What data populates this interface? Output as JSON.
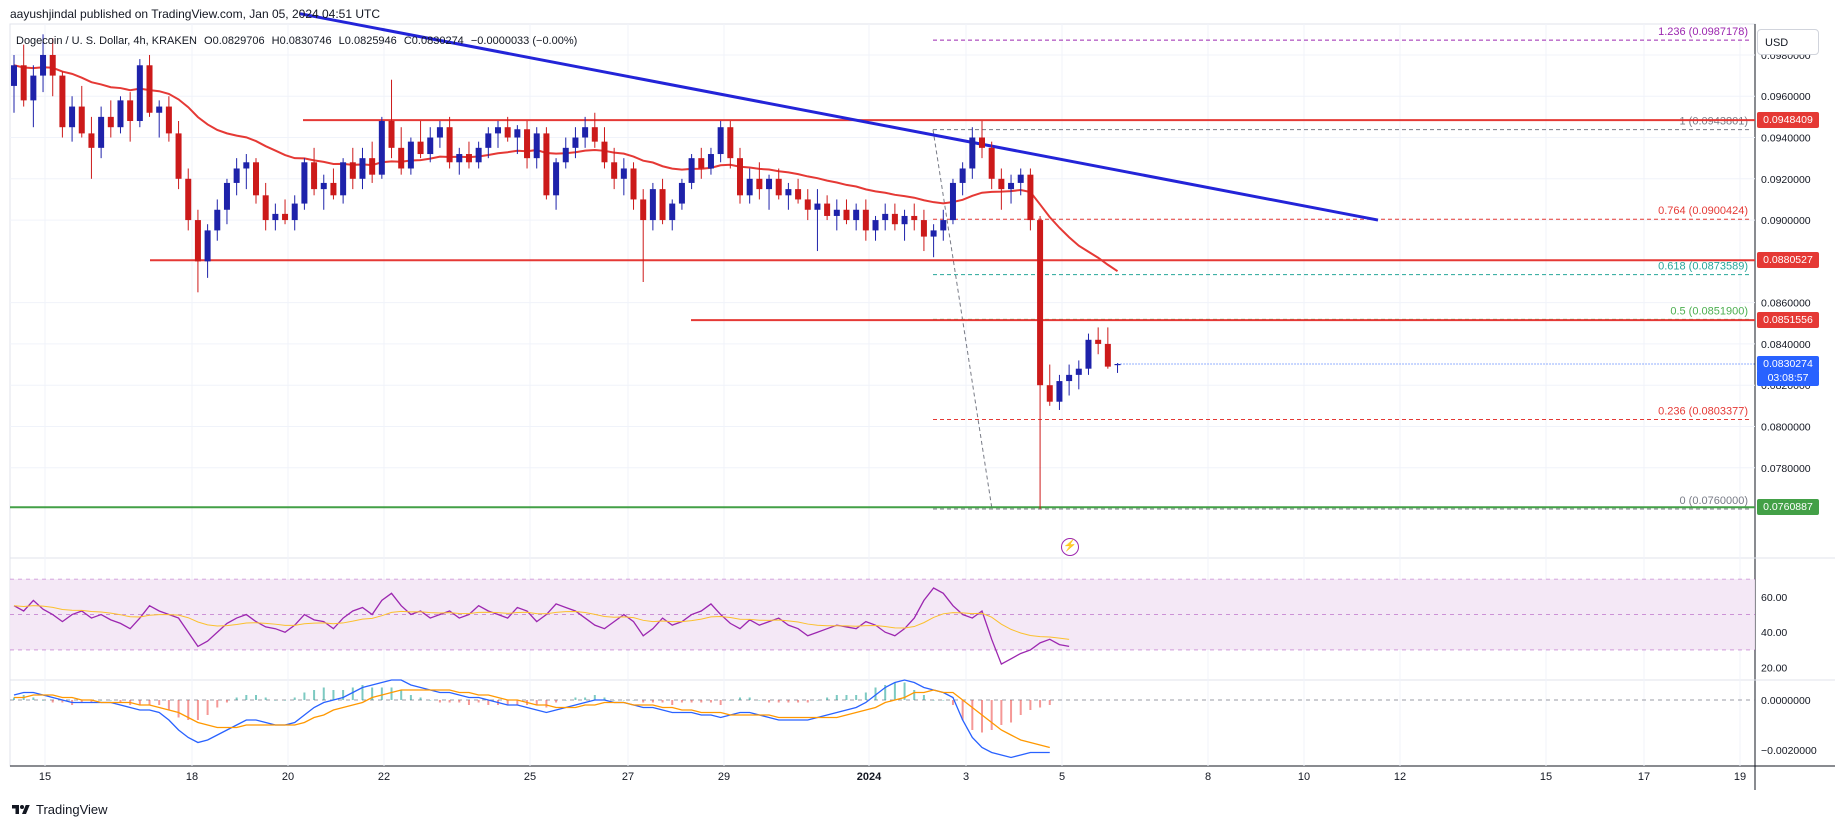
{
  "header": {
    "publisher": "aayushjindal published on TradingView.com, Jan 05, 2024 04:51 UTC",
    "symbol": "Dogecoin / U. S. Dollar, 4h, KRAKEN",
    "open": "O0.0829706",
    "high": "H0.0830746",
    "low": "L0.0825946",
    "close": "C0.0830274",
    "change": "−0.0000033 (−0.00%)",
    "currency": "USD"
  },
  "footer": {
    "brand": "TradingView"
  },
  "colors": {
    "up": "#1e22aa",
    "down": "#cc1a1a",
    "ema": "#e53935",
    "trendline": "#2324d8",
    "support": "#43a047",
    "fib": "#c2185b",
    "rsi": "#9c27b0",
    "macd": "#2962ff",
    "signal": "#ff9800"
  },
  "chart_data": [
    {
      "type": "candlestick",
      "pane": "price",
      "x_ticks": [
        "15",
        "18",
        "20",
        "22",
        "25",
        "27",
        "29",
        "2024",
        "3",
        "5",
        "8",
        "10",
        "12",
        "15",
        "17",
        "19"
      ],
      "y_ticks": [
        "0.0980000",
        "0.0960000",
        "0.0940000",
        "0.0920000",
        "0.0900000",
        "0.0860000",
        "0.0840000",
        "0.0820000",
        "0.0800000",
        "0.0780000"
      ],
      "ylim": [
        0.0745,
        0.0995
      ],
      "candles": [
        [
          0.0965,
          0.098,
          0.0952,
          0.0975
        ],
        [
          0.0975,
          0.0985,
          0.0955,
          0.0958
        ],
        [
          0.0958,
          0.0975,
          0.0945,
          0.097
        ],
        [
          0.097,
          0.099,
          0.0962,
          0.098
        ],
        [
          0.098,
          0.0988,
          0.096,
          0.097
        ],
        [
          0.097,
          0.0972,
          0.094,
          0.0945
        ],
        [
          0.0945,
          0.096,
          0.0938,
          0.0955
        ],
        [
          0.0955,
          0.0965,
          0.094,
          0.0942
        ],
        [
          0.0942,
          0.095,
          0.092,
          0.0935
        ],
        [
          0.0935,
          0.0955,
          0.093,
          0.095
        ],
        [
          0.095,
          0.0958,
          0.094,
          0.0945
        ],
        [
          0.0945,
          0.096,
          0.0942,
          0.0958
        ],
        [
          0.0958,
          0.0962,
          0.0938,
          0.0948
        ],
        [
          0.0948,
          0.0978,
          0.0945,
          0.0975
        ],
        [
          0.0975,
          0.098,
          0.095,
          0.0952
        ],
        [
          0.0952,
          0.0958,
          0.094,
          0.0955
        ],
        [
          0.0955,
          0.096,
          0.0938,
          0.0942
        ],
        [
          0.0942,
          0.0948,
          0.0915,
          0.092
        ],
        [
          0.092,
          0.0925,
          0.0895,
          0.09
        ],
        [
          0.09,
          0.0905,
          0.0865,
          0.088
        ],
        [
          0.088,
          0.0898,
          0.0872,
          0.0895
        ],
        [
          0.0895,
          0.091,
          0.089,
          0.0905
        ],
        [
          0.0905,
          0.092,
          0.0898,
          0.0918
        ],
        [
          0.0918,
          0.093,
          0.0912,
          0.0925
        ],
        [
          0.0925,
          0.0932,
          0.0915,
          0.0928
        ],
        [
          0.0928,
          0.093,
          0.0908,
          0.0912
        ],
        [
          0.0912,
          0.0918,
          0.0895,
          0.09
        ],
        [
          0.09,
          0.0908,
          0.0895,
          0.0903
        ],
        [
          0.0903,
          0.091,
          0.0898,
          0.09
        ],
        [
          0.09,
          0.0912,
          0.0895,
          0.0908
        ],
        [
          0.0908,
          0.093,
          0.0905,
          0.0928
        ],
        [
          0.0928,
          0.0935,
          0.0912,
          0.0915
        ],
        [
          0.0915,
          0.0922,
          0.0905,
          0.0918
        ],
        [
          0.0918,
          0.0925,
          0.091,
          0.0912
        ],
        [
          0.0912,
          0.093,
          0.0908,
          0.0928
        ],
        [
          0.0928,
          0.0935,
          0.0915,
          0.092
        ],
        [
          0.092,
          0.0935,
          0.0915,
          0.093
        ],
        [
          0.093,
          0.0938,
          0.0918,
          0.0922
        ],
        [
          0.0922,
          0.095,
          0.092,
          0.0948
        ],
        [
          0.0948,
          0.0968,
          0.093,
          0.0935
        ],
        [
          0.0935,
          0.0945,
          0.0922,
          0.0925
        ],
        [
          0.0925,
          0.094,
          0.0922,
          0.0938
        ],
        [
          0.0938,
          0.0948,
          0.093,
          0.0932
        ],
        [
          0.0932,
          0.0945,
          0.0928,
          0.094
        ],
        [
          0.094,
          0.0948,
          0.0935,
          0.0945
        ],
        [
          0.0945,
          0.095,
          0.0925,
          0.0928
        ],
        [
          0.0928,
          0.0935,
          0.0922,
          0.0932
        ],
        [
          0.0932,
          0.0938,
          0.0925,
          0.0928
        ],
        [
          0.0928,
          0.0938,
          0.0925,
          0.0935
        ],
        [
          0.0935,
          0.0945,
          0.093,
          0.0942
        ],
        [
          0.0942,
          0.0948,
          0.0935,
          0.0945
        ],
        [
          0.0945,
          0.095,
          0.0938,
          0.094
        ],
        [
          0.094,
          0.0946,
          0.0932,
          0.0944
        ],
        [
          0.0944,
          0.0948,
          0.0925,
          0.093
        ],
        [
          0.093,
          0.0945,
          0.0925,
          0.0942
        ],
        [
          0.0942,
          0.0945,
          0.091,
          0.0912
        ],
        [
          0.0912,
          0.093,
          0.0905,
          0.0928
        ],
        [
          0.0928,
          0.094,
          0.0925,
          0.0935
        ],
        [
          0.0935,
          0.0945,
          0.093,
          0.094
        ],
        [
          0.094,
          0.095,
          0.0935,
          0.0945
        ],
        [
          0.0945,
          0.0952,
          0.0935,
          0.0938
        ],
        [
          0.0938,
          0.0945,
          0.0925,
          0.0928
        ],
        [
          0.0928,
          0.0935,
          0.0915,
          0.092
        ],
        [
          0.092,
          0.093,
          0.0912,
          0.0925
        ],
        [
          0.0925,
          0.0928,
          0.0905,
          0.091
        ],
        [
          0.091,
          0.0915,
          0.087,
          0.09
        ],
        [
          0.09,
          0.0918,
          0.0895,
          0.0915
        ],
        [
          0.0915,
          0.092,
          0.0898,
          0.09
        ],
        [
          0.09,
          0.091,
          0.0895,
          0.0908
        ],
        [
          0.0908,
          0.092,
          0.0905,
          0.0918
        ],
        [
          0.0918,
          0.0932,
          0.0915,
          0.093
        ],
        [
          0.093,
          0.0935,
          0.092,
          0.0925
        ],
        [
          0.0925,
          0.0935,
          0.0922,
          0.0932
        ],
        [
          0.0932,
          0.0948,
          0.0928,
          0.0945
        ],
        [
          0.0945,
          0.0948,
          0.0925,
          0.093
        ],
        [
          0.093,
          0.0935,
          0.0908,
          0.0912
        ],
        [
          0.0912,
          0.0925,
          0.0908,
          0.092
        ],
        [
          0.092,
          0.0928,
          0.091,
          0.0915
        ],
        [
          0.0915,
          0.0922,
          0.0905,
          0.092
        ],
        [
          0.092,
          0.0925,
          0.091,
          0.0912
        ],
        [
          0.0912,
          0.0918,
          0.0905,
          0.0915
        ],
        [
          0.0915,
          0.092,
          0.0908,
          0.091
        ],
        [
          0.091,
          0.0915,
          0.09,
          0.0905
        ],
        [
          0.0905,
          0.0915,
          0.0885,
          0.0908
        ],
        [
          0.0908,
          0.0912,
          0.09,
          0.0902
        ],
        [
          0.0902,
          0.091,
          0.0895,
          0.0905
        ],
        [
          0.0905,
          0.091,
          0.0898,
          0.09
        ],
        [
          0.09,
          0.0908,
          0.0895,
          0.0905
        ],
        [
          0.0905,
          0.091,
          0.089,
          0.0895
        ],
        [
          0.0895,
          0.0902,
          0.089,
          0.09
        ],
        [
          0.09,
          0.0908,
          0.0895,
          0.0903
        ],
        [
          0.0903,
          0.0908,
          0.0895,
          0.0898
        ],
        [
          0.0898,
          0.0905,
          0.089,
          0.0902
        ],
        [
          0.0902,
          0.0908,
          0.0895,
          0.09
        ],
        [
          0.09,
          0.0905,
          0.0885,
          0.0892
        ],
        [
          0.0892,
          0.0898,
          0.0882,
          0.0895
        ],
        [
          0.0895,
          0.0905,
          0.089,
          0.09
        ],
        [
          0.09,
          0.092,
          0.0898,
          0.0918
        ],
        [
          0.0918,
          0.0928,
          0.0912,
          0.0925
        ],
        [
          0.0925,
          0.0945,
          0.092,
          0.094
        ],
        [
          0.094,
          0.0948,
          0.093,
          0.0935
        ],
        [
          0.0935,
          0.0938,
          0.0915,
          0.092
        ],
        [
          0.092,
          0.0925,
          0.0905,
          0.0915
        ],
        [
          0.0915,
          0.0922,
          0.0908,
          0.0918
        ],
        [
          0.0918,
          0.0925,
          0.0912,
          0.0922
        ],
        [
          0.0922,
          0.0925,
          0.0895,
          0.09
        ],
        [
          0.09,
          0.0902,
          0.076,
          0.082
        ],
        [
          0.082,
          0.083,
          0.081,
          0.0812
        ],
        [
          0.0812,
          0.0825,
          0.0808,
          0.0822
        ],
        [
          0.0822,
          0.083,
          0.0815,
          0.0825
        ],
        [
          0.0825,
          0.0832,
          0.0818,
          0.0828
        ],
        [
          0.0828,
          0.0845,
          0.0825,
          0.0842
        ],
        [
          0.0842,
          0.0848,
          0.0835,
          0.084
        ],
        [
          0.084,
          0.0848,
          0.0828,
          0.0829
        ],
        [
          0.0829706,
          0.0830746,
          0.0825946,
          0.0830274
        ]
      ]
    },
    {
      "type": "overlay",
      "pane": "price",
      "horizontal_levels": [
        {
          "name": "resistance",
          "value": 0.0948409,
          "label": "0.0948409",
          "color": "#e53935"
        },
        {
          "name": "support-1",
          "value": 0.0880527,
          "label": "0.0880527",
          "color": "#e53935"
        },
        {
          "name": "resistance-2",
          "value": 0.0851556,
          "label": "0.0851556",
          "color": "#e53935"
        },
        {
          "name": "support-2",
          "value": 0.0760887,
          "label": "0.0760887",
          "color": "#43a047"
        }
      ],
      "current_price": {
        "value": 0.0830274,
        "label": "0.0830274",
        "countdown": "03:08:57",
        "color": "#2962ff"
      },
      "fibonacci": [
        {
          "ratio": "1.236",
          "value": 0.0987178,
          "label": "1.236 (0.0987178)",
          "color": "#9c27b0"
        },
        {
          "ratio": "1",
          "value": 0.0943801,
          "label": "1 (0.0943801)",
          "color": "#787b86"
        },
        {
          "ratio": "0.764",
          "value": 0.0900424,
          "label": "0.764 (0.0900424)",
          "color": "#e53935"
        },
        {
          "ratio": "0.618",
          "value": 0.0873589,
          "label": "0.618 (0.0873589)",
          "color": "#26a69a"
        },
        {
          "ratio": "0.5",
          "value": 0.08519,
          "label": "0.5 (0.0851900)",
          "color": "#4caf50"
        },
        {
          "ratio": "0.236",
          "value": 0.0803377,
          "label": "0.236 (0.0803377)",
          "color": "#e53935"
        },
        {
          "ratio": "0",
          "value": 0.076,
          "label": "0 (0.0760000)",
          "color": "#787b86"
        }
      ],
      "trendline": {
        "from": [
          0,
          0.1
        ],
        "to": [
          136,
          0.09
        ],
        "color": "#2324d8"
      },
      "ema_color": "#e53935"
    },
    {
      "type": "line",
      "pane": "rsi",
      "name": "RSI",
      "y_ticks": [
        "60.00",
        "40.00",
        "20.00"
      ],
      "ylim": [
        13,
        78
      ],
      "band": [
        30,
        70
      ],
      "values": [
        55,
        52,
        58,
        53,
        50,
        46,
        50,
        52,
        48,
        50,
        47,
        45,
        42,
        48,
        55,
        52,
        50,
        48,
        40,
        32,
        35,
        40,
        45,
        48,
        50,
        46,
        43,
        42,
        40,
        44,
        50,
        47,
        46,
        42,
        48,
        52,
        54,
        50,
        58,
        62,
        55,
        50,
        52,
        48,
        50,
        52,
        48,
        50,
        55,
        52,
        50,
        48,
        54,
        52,
        46,
        50,
        56,
        54,
        52,
        48,
        44,
        42,
        46,
        50,
        46,
        38,
        42,
        48,
        44,
        46,
        50,
        52,
        56,
        50,
        45,
        42,
        47,
        44,
        46,
        48,
        44,
        42,
        38,
        40,
        42,
        44,
        43,
        42,
        46,
        44,
        40,
        38,
        42,
        48,
        58,
        65,
        62,
        55,
        50,
        48,
        52,
        36,
        22,
        25,
        28,
        30,
        34,
        36,
        33,
        32
      ]
    },
    {
      "type": "histogram+lines",
      "pane": "macd",
      "name": "MACD",
      "y_ticks": [
        "0.0000000",
        "−0.0020000"
      ],
      "ylim": [
        -0.0026,
        0.0008
      ],
      "macd": [
        0.0002,
        0.0003,
        0.0003,
        0.0002,
        0.0001,
        0.0,
        -0.0001,
        -0.0001,
        -0.0001,
        -0.0001,
        -0.0001,
        -0.0002,
        -0.0003,
        -0.0004,
        -0.0004,
        -0.0005,
        -0.0008,
        -0.0012,
        -0.0015,
        -0.0017,
        -0.0016,
        -0.0014,
        -0.0012,
        -0.001,
        -0.0008,
        -0.0008,
        -0.0009,
        -0.001,
        -0.001,
        -0.0009,
        -0.0006,
        -0.0003,
        -0.0001,
        0.0,
        0.0001,
        0.0003,
        0.0005,
        0.0006,
        0.0007,
        0.0008,
        0.0008,
        0.0006,
        0.0005,
        0.0004,
        0.0003,
        0.0003,
        0.0002,
        0.0001,
        0.0001,
        0.0,
        -0.0001,
        -0.0002,
        -0.0002,
        -0.0003,
        -0.0004,
        -0.0005,
        -0.0004,
        -0.0003,
        -0.0002,
        -0.0001,
        0.0,
        0.0,
        -0.0001,
        -0.0001,
        -0.0002,
        -0.0003,
        -0.0003,
        -0.0004,
        -0.0005,
        -0.0005,
        -0.0005,
        -0.0006,
        -0.0006,
        -0.0007,
        -0.0006,
        -0.0005,
        -0.0005,
        -0.0006,
        -0.0007,
        -0.0008,
        -0.0008,
        -0.0008,
        -0.0008,
        -0.0007,
        -0.0006,
        -0.0005,
        -0.0004,
        -0.0003,
        -0.0001,
        0.0002,
        0.0005,
        0.0007,
        0.0008,
        0.0007,
        0.0005,
        0.0004,
        0.0003,
        0.0001,
        -0.0008,
        -0.0015,
        -0.0019,
        -0.0021,
        -0.0022,
        -0.0023,
        -0.0022,
        -0.0021,
        -0.0021,
        -0.0021
      ],
      "signal": [
        0.0001,
        0.0001,
        0.0002,
        0.0002,
        0.0002,
        0.0001,
        0.0001,
        0.0,
        0.0,
        -0.0001,
        -0.0001,
        -0.0001,
        -0.0001,
        -0.0002,
        -0.0002,
        -0.0003,
        -0.0004,
        -0.0005,
        -0.0007,
        -0.0009,
        -0.001,
        -0.0011,
        -0.0011,
        -0.0011,
        -0.001,
        -0.001,
        -0.001,
        -0.001,
        -0.001,
        -0.001,
        -0.0009,
        -0.0007,
        -0.0006,
        -0.0004,
        -0.0003,
        -0.0002,
        -0.0001,
        0.0001,
        0.0002,
        0.0003,
        0.0004,
        0.0004,
        0.0004,
        0.0004,
        0.0004,
        0.0004,
        0.0003,
        0.0003,
        0.0002,
        0.0002,
        0.0001,
        0.0,
        0.0,
        -0.0001,
        -0.0002,
        -0.0002,
        -0.0003,
        -0.0003,
        -0.0003,
        -0.0002,
        -0.0002,
        -0.0001,
        -0.0001,
        -0.0001,
        -0.0002,
        -0.0002,
        -0.0002,
        -0.0003,
        -0.0003,
        -0.0004,
        -0.0004,
        -0.0005,
        -0.0005,
        -0.0005,
        -0.0006,
        -0.0006,
        -0.0006,
        -0.0006,
        -0.0006,
        -0.0007,
        -0.0007,
        -0.0007,
        -0.0007,
        -0.0007,
        -0.0007,
        -0.0007,
        -0.0006,
        -0.0005,
        -0.0004,
        -0.0003,
        -0.0001,
        0.0,
        0.0001,
        0.0003,
        0.0003,
        0.0004,
        0.0003,
        0.0003,
        0.0,
        -0.0003,
        -0.0006,
        -0.0009,
        -0.0012,
        -0.0014,
        -0.0016,
        -0.0017,
        -0.0018,
        -0.0019
      ]
    }
  ]
}
